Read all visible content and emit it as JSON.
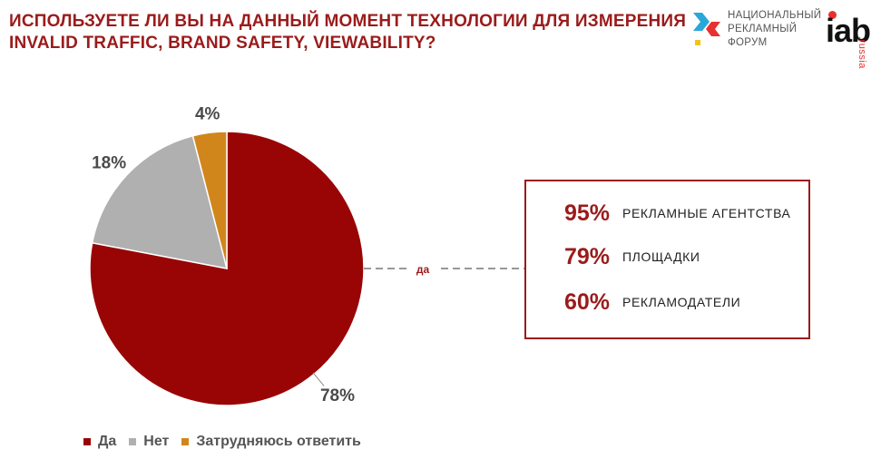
{
  "title": {
    "line1": "ИСПОЛЬЗУЕТЕ ЛИ ВЫ НА ДАННЫЙ МОМЕНТ ТЕХНОЛОГИИ ДЛЯ ИЗМЕРЕНИЯ",
    "line2": "INVALID TRAFFIC, BRAND SAFETY, VIEWABILITY?"
  },
  "logos": {
    "nrf": {
      "line1": "НАЦИОНАЛЬНЫЙ",
      "line2": "РЕКЛАМНЫЙ",
      "line3": "ФОРУМ"
    },
    "iab": {
      "word": "iab",
      "suffix": ".russia"
    }
  },
  "chart_data": {
    "type": "pie",
    "categories": [
      "Да",
      "Нет",
      "Затрудняюсь ответить"
    ],
    "values": [
      78,
      18,
      4
    ],
    "labels": [
      "78%",
      "18%",
      "4%"
    ],
    "colors": [
      "#990505",
      "#b0b0b0",
      "#d1861c"
    ],
    "legend": "bottom-left"
  },
  "callout": {
    "connector_label": "да",
    "rows": [
      {
        "value": "95%",
        "label": "РЕКЛАМНЫЕ АГЕНТСТВА"
      },
      {
        "value": "79%",
        "label": "ПЛОЩАДКИ"
      },
      {
        "value": "60%",
        "label": "РЕКЛАМОДАТЕЛИ"
      }
    ]
  },
  "colors": {
    "accent": "#9b1b1b"
  }
}
